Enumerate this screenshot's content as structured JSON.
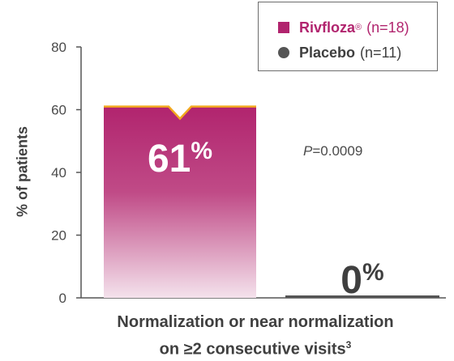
{
  "chart_data": {
    "type": "bar",
    "categories": [
      "Rivfloza",
      "Placebo"
    ],
    "values": [
      61,
      0
    ],
    "value_labels": [
      "61",
      "0"
    ],
    "value_suffix": "%",
    "ylabel": "% of patients",
    "xlabel_line1": "Normalization or near normalization",
    "xlabel_line2": "on ≥2 consecutive visits",
    "xlabel_superscript": "3",
    "ylim": [
      0,
      80
    ],
    "yticks": [
      "0",
      "20",
      "40",
      "60",
      "80"
    ],
    "annotation": {
      "p_symbol": "P",
      "p_value": "=0.0009"
    },
    "grid": false,
    "legend_position": "top-right",
    "colors": {
      "rivfloza": "#b1246e",
      "rivfloza_top": "#f2a91f",
      "placebo": "#555555",
      "axis": "#555555"
    }
  },
  "legend": {
    "items": [
      {
        "name": "Rivfloza",
        "superscript": "®",
        "n": "(n=18)",
        "marker": "square",
        "color": "#b1246e"
      },
      {
        "name": "Placebo",
        "superscript": "",
        "n": "(n=11)",
        "marker": "circle",
        "color": "#555555"
      }
    ]
  }
}
